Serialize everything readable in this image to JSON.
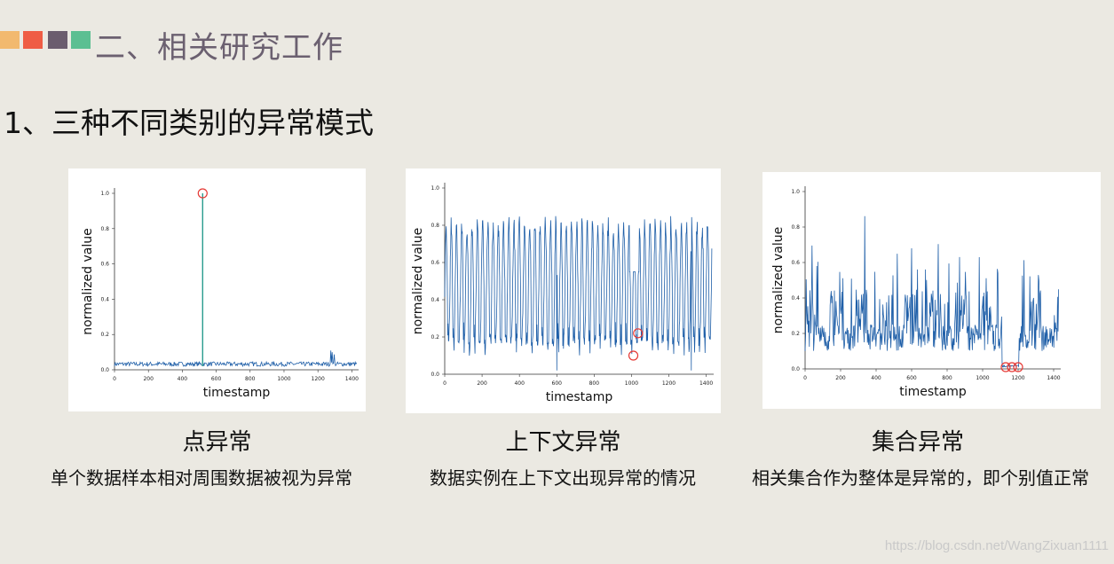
{
  "header": {
    "swatches": [
      "#f2b96f",
      "#ef5d45",
      "#6b5d6e",
      "#5cbf92"
    ],
    "section_title": "二、相关研究工作",
    "subtitle": "1、三种不同类别的异常模式"
  },
  "chart_data": [
    {
      "type": "line",
      "xlabel": "timestamp",
      "ylabel": "normalized value",
      "xlim": [
        0,
        1440
      ],
      "ylim": [
        0,
        1.0
      ],
      "xticks": [
        0,
        200,
        400,
        600,
        800,
        1000,
        1200,
        1400
      ],
      "yticks": [
        0.0,
        0.2,
        0.4,
        0.6,
        0.8,
        1.0
      ],
      "pattern": "flat baseline near 0.02 with a single spike",
      "series": [
        {
          "baseline": 0.02,
          "spike": {
            "x": 520,
            "y": 1.0
          }
        }
      ],
      "anomalies": [
        {
          "x": 520,
          "y": 1.0
        }
      ],
      "spike_color": "#2a9d8f"
    },
    {
      "type": "line",
      "xlabel": "timestamp",
      "ylabel": "normalized value",
      "xlim": [
        0,
        1440
      ],
      "ylim": [
        0,
        1.0
      ],
      "xticks": [
        0,
        200,
        400,
        600,
        800,
        1000,
        1200,
        1400
      ],
      "yticks": [
        0.0,
        0.2,
        0.4,
        0.6,
        0.8,
        1.0
      ],
      "pattern": "periodic oscillation between about 0.15 and 0.8",
      "series": [
        {
          "period": 28,
          "low": 0.15,
          "high": 0.8
        }
      ],
      "anomalies": [
        {
          "x": 1010,
          "y": 0.1
        },
        {
          "x": 1035,
          "y": 0.22
        }
      ]
    },
    {
      "type": "line",
      "xlabel": "timestamp",
      "ylabel": "normalized value",
      "xlim": [
        0,
        1440
      ],
      "ylim": [
        0,
        1.0
      ],
      "xticks": [
        0,
        200,
        400,
        600,
        800,
        1000,
        1200,
        1400
      ],
      "yticks": [
        0.0,
        0.2,
        0.4,
        0.6,
        0.8,
        1.0
      ],
      "pattern": "noisy bursts, flat near 0 between 1120 and 1200",
      "series": [
        {
          "low": 0.1,
          "high": 0.9
        }
      ],
      "anomalies": [
        {
          "x": 1130,
          "y": 0.01
        },
        {
          "x": 1165,
          "y": 0.01
        },
        {
          "x": 1200,
          "y": 0.01
        }
      ]
    }
  ],
  "captions": [
    {
      "title": "点异常",
      "desc": "单个数据样本相对周围数据被视为异常"
    },
    {
      "title": "上下文异常",
      "desc": "数据实例在上下文出现异常的情况"
    },
    {
      "title": "集合异常",
      "desc": "相关集合作为整体是异常的，即个别值正常"
    }
  ],
  "watermark": "https://blog.csdn.net/WangZixuan1111",
  "colors": {
    "line": "#1f5fa8",
    "anomaly": "#e53935"
  }
}
